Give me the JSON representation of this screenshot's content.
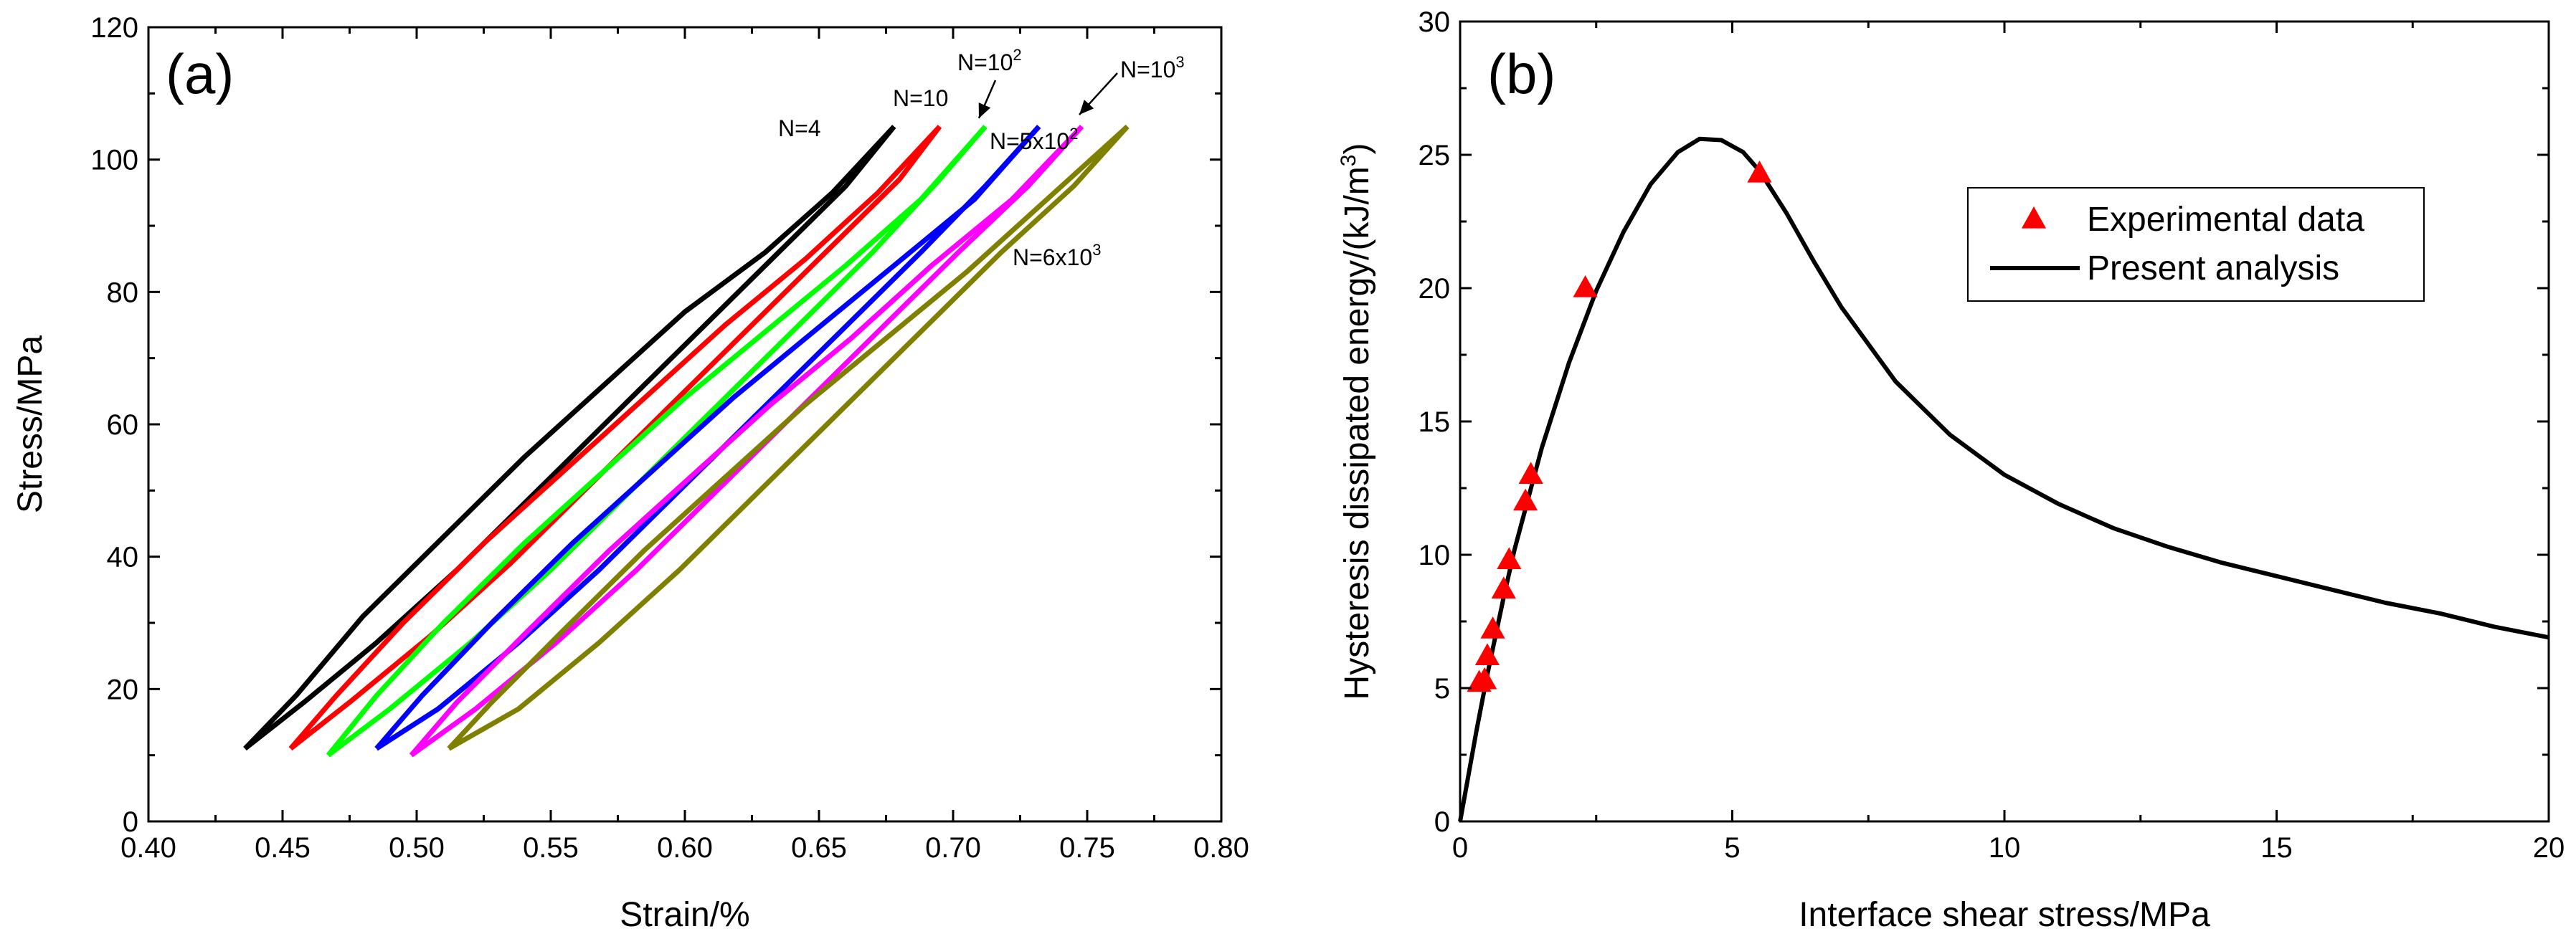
{
  "chart_data": [
    {
      "panel": "(a)",
      "type": "line",
      "title": "",
      "xlabel": "Strain/%",
      "ylabel": "Stress/MPa",
      "xlim": [
        0.4,
        0.8
      ],
      "ylim": [
        0,
        120
      ],
      "xticks": [
        "0.40",
        "0.45",
        "0.50",
        "0.55",
        "0.60",
        "0.65",
        "0.70",
        "0.75",
        "0.80"
      ],
      "yticks": [
        "0",
        "20",
        "40",
        "60",
        "80",
        "100",
        "120"
      ],
      "grid": false,
      "series": [
        {
          "name": "N=4",
          "color": "#000000",
          "loading": [
            [
              0.436,
              11
            ],
            [
              0.455,
              19
            ],
            [
              0.48,
              31
            ],
            [
              0.51,
              43
            ],
            [
              0.54,
              55
            ],
            [
              0.57,
              66
            ],
            [
              0.6,
              77
            ],
            [
              0.63,
              86
            ],
            [
              0.655,
              95
            ],
            [
              0.678,
              105
            ]
          ],
          "unloading": [
            [
              0.678,
              105
            ],
            [
              0.66,
              96
            ],
            [
              0.635,
              86
            ],
            [
              0.605,
              74
            ],
            [
              0.575,
              62
            ],
            [
              0.545,
              50
            ],
            [
              0.515,
              38
            ],
            [
              0.485,
              27
            ],
            [
              0.458,
              18
            ],
            [
              0.436,
              11
            ]
          ]
        },
        {
          "name": "N=10",
          "color": "#ff0000",
          "loading": [
            [
              0.453,
              11
            ],
            [
              0.47,
              19
            ],
            [
              0.495,
              30
            ],
            [
              0.525,
              42
            ],
            [
              0.555,
              53
            ],
            [
              0.585,
              64
            ],
            [
              0.615,
              75
            ],
            [
              0.645,
              85
            ],
            [
              0.672,
              95
            ],
            [
              0.695,
              105
            ]
          ],
          "unloading": [
            [
              0.695,
              105
            ],
            [
              0.68,
              97
            ],
            [
              0.655,
              87
            ],
            [
              0.625,
              75
            ],
            [
              0.595,
              63
            ],
            [
              0.565,
              51
            ],
            [
              0.535,
              39
            ],
            [
              0.505,
              28
            ],
            [
              0.475,
              18
            ],
            [
              0.453,
              11
            ]
          ]
        },
        {
          "name": "N=10²",
          "color": "#00ff00",
          "loading": [
            [
              0.467,
              10
            ],
            [
              0.485,
              19
            ],
            [
              0.51,
              30
            ],
            [
              0.54,
              42
            ],
            [
              0.57,
              53
            ],
            [
              0.6,
              64
            ],
            [
              0.63,
              74
            ],
            [
              0.66,
              84
            ],
            [
              0.688,
              94
            ],
            [
              0.712,
              105
            ]
          ],
          "unloading": [
            [
              0.712,
              105
            ],
            [
              0.695,
              97
            ],
            [
              0.67,
              86
            ],
            [
              0.64,
              74
            ],
            [
              0.61,
              62
            ],
            [
              0.58,
              50
            ],
            [
              0.55,
              38
            ],
            [
              0.52,
              27
            ],
            [
              0.49,
              17
            ],
            [
              0.467,
              10
            ]
          ]
        },
        {
          "name": "N=5x10²",
          "color": "#0000ff",
          "loading": [
            [
              0.485,
              11
            ],
            [
              0.502,
              19
            ],
            [
              0.528,
              30
            ],
            [
              0.558,
              42
            ],
            [
              0.588,
              53
            ],
            [
              0.618,
              64
            ],
            [
              0.648,
              74
            ],
            [
              0.678,
              84
            ],
            [
              0.708,
              94
            ],
            [
              0.732,
              105
            ]
          ],
          "unloading": [
            [
              0.732,
              105
            ],
            [
              0.712,
              96
            ],
            [
              0.688,
              86
            ],
            [
              0.658,
              74
            ],
            [
              0.628,
              62
            ],
            [
              0.598,
              50
            ],
            [
              0.568,
              38
            ],
            [
              0.538,
              27
            ],
            [
              0.508,
              17
            ],
            [
              0.485,
              11
            ]
          ]
        },
        {
          "name": "N=10³",
          "color": "#ff00ff",
          "loading": [
            [
              0.498,
              10
            ],
            [
              0.515,
              18
            ],
            [
              0.542,
              29
            ],
            [
              0.572,
              41
            ],
            [
              0.602,
              52
            ],
            [
              0.632,
              63
            ],
            [
              0.662,
              73
            ],
            [
              0.692,
              84
            ],
            [
              0.722,
              94
            ],
            [
              0.748,
              105
            ]
          ],
          "unloading": [
            [
              0.748,
              105
            ],
            [
              0.728,
              96
            ],
            [
              0.702,
              86
            ],
            [
              0.672,
              74
            ],
            [
              0.642,
              62
            ],
            [
              0.612,
              50
            ],
            [
              0.582,
              38
            ],
            [
              0.552,
              27
            ],
            [
              0.522,
              17
            ],
            [
              0.498,
              10
            ]
          ]
        },
        {
          "name": "N=6x10³",
          "color": "#808000",
          "loading": [
            [
              0.512,
              11
            ],
            [
              0.528,
              18
            ],
            [
              0.555,
              29
            ],
            [
              0.585,
              41
            ],
            [
              0.615,
              52
            ],
            [
              0.645,
              63
            ],
            [
              0.675,
              73
            ],
            [
              0.705,
              83
            ],
            [
              0.735,
              94
            ],
            [
              0.765,
              105
            ]
          ],
          "unloading": [
            [
              0.765,
              105
            ],
            [
              0.745,
              96
            ],
            [
              0.718,
              86
            ],
            [
              0.688,
              74
            ],
            [
              0.658,
              62
            ],
            [
              0.628,
              50
            ],
            [
              0.598,
              38
            ],
            [
              0.568,
              27
            ],
            [
              0.538,
              17
            ],
            [
              0.512,
              11
            ]
          ]
        }
      ],
      "annotations": [
        {
          "text": "N=4",
          "parts": [
            "N=4"
          ]
        },
        {
          "text": "N=10",
          "parts": [
            "N=10"
          ]
        },
        {
          "text": "N=10^2",
          "parts": [
            "N=10",
            "2"
          ]
        },
        {
          "text": "N=5x10^2",
          "parts": [
            "N=5x10",
            "2"
          ]
        },
        {
          "text": "N=10^3",
          "parts": [
            "N=10",
            "3"
          ]
        },
        {
          "text": "N=6x10^3",
          "parts": [
            "N=6x10",
            "3"
          ]
        }
      ]
    },
    {
      "panel": "(b)",
      "type": "scatter+line",
      "title": "",
      "xlabel": "Interface shear stress/MPa",
      "ylabel": "Hysteresis dissipated energy/(kJ/m",
      "ylabel_sup": "3",
      "ylabel_end": ")",
      "xlim": [
        0,
        20
      ],
      "ylim": [
        0,
        30
      ],
      "xticks": [
        "0",
        "5",
        "10",
        "15",
        "20"
      ],
      "yticks": [
        "0",
        "5",
        "10",
        "15",
        "20",
        "25",
        "30"
      ],
      "grid": false,
      "legend": {
        "placement": "top-right",
        "entries": [
          "Experimental data",
          "Present analysis"
        ]
      },
      "series": [
        {
          "name": "Experimental data",
          "kind": "scatter",
          "marker": "triangle",
          "color": "#ff0000",
          "points": [
            [
              0.35,
              5.2
            ],
            [
              0.45,
              5.3
            ],
            [
              0.5,
              6.2
            ],
            [
              0.6,
              7.2
            ],
            [
              0.8,
              8.7
            ],
            [
              0.9,
              9.8
            ],
            [
              1.2,
              12.0
            ],
            [
              1.3,
              13.0
            ],
            [
              2.3,
              20.0
            ],
            [
              5.5,
              24.3
            ]
          ]
        },
        {
          "name": "Present analysis",
          "kind": "line",
          "color": "#000000",
          "points": [
            [
              0,
              0
            ],
            [
              0.3,
              3.4
            ],
            [
              0.5,
              5.5
            ],
            [
              0.8,
              8.4
            ],
            [
              1.0,
              10.2
            ],
            [
              1.5,
              14.0
            ],
            [
              2.0,
              17.2
            ],
            [
              2.5,
              19.9
            ],
            [
              3.0,
              22.1
            ],
            [
              3.5,
              23.9
            ],
            [
              4.0,
              25.1
            ],
            [
              4.4,
              25.6
            ],
            [
              4.8,
              25.55
            ],
            [
              5.2,
              25.1
            ],
            [
              5.5,
              24.4
            ],
            [
              6.0,
              22.8
            ],
            [
              6.5,
              21.0
            ],
            [
              7.0,
              19.3
            ],
            [
              8.0,
              16.5
            ],
            [
              9.0,
              14.5
            ],
            [
              10.0,
              13.0
            ],
            [
              11.0,
              11.9
            ],
            [
              12.0,
              11.0
            ],
            [
              13.0,
              10.3
            ],
            [
              14.0,
              9.7
            ],
            [
              15.0,
              9.2
            ],
            [
              16.0,
              8.7
            ],
            [
              17.0,
              8.2
            ],
            [
              18.0,
              7.8
            ],
            [
              19.0,
              7.3
            ],
            [
              20.0,
              6.9
            ]
          ]
        }
      ]
    }
  ]
}
